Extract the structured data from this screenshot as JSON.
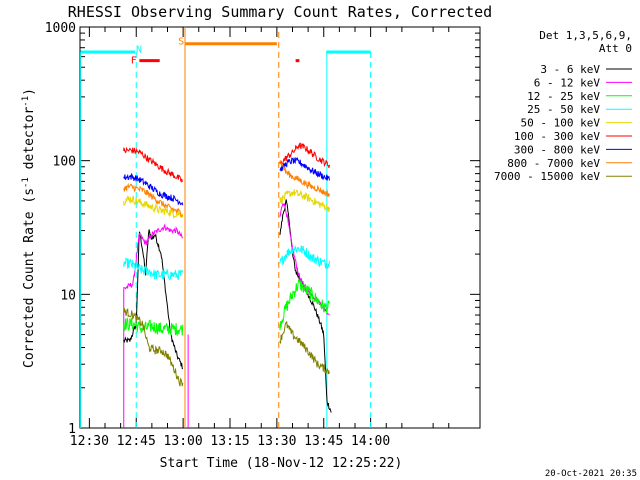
{
  "chart_data": {
    "type": "line",
    "title": "RHESSI Observing Summary Count Rates, Corrected",
    "xlabel": "Start Time (18-Nov-12 12:25:22)",
    "ylabel_main": "Corrected Count Rate (s",
    "ylabel_sup1": "-1",
    "ylabel_mid": " detector",
    "ylabel_sup2": "-1",
    "ylabel_end": ")",
    "yscale": "log",
    "ylim": [
      1,
      1000
    ],
    "xlim_min": [
      747,
      875
    ],
    "x_ticks": [
      {
        "t": 750,
        "label": "12:30"
      },
      {
        "t": 765,
        "label": "12:45"
      },
      {
        "t": 780,
        "label": "13:00"
      },
      {
        "t": 795,
        "label": "13:15"
      },
      {
        "t": 810,
        "label": "13:30"
      },
      {
        "t": 825,
        "label": "13:45"
      },
      {
        "t": 840,
        "label": "14:00"
      }
    ],
    "y_ticks": [
      {
        "v": 1,
        "label": "1"
      },
      {
        "v": 10,
        "label": "10"
      },
      {
        "v": 100,
        "label": "100"
      },
      {
        "v": 1000,
        "label": "1000"
      }
    ],
    "legend": {
      "placement": "right",
      "header": [
        "Det 1,3,5,6,9,",
        "Att 0"
      ],
      "entries": [
        {
          "name": "3 - 6 keV",
          "color": "#000000"
        },
        {
          "name": "6 - 12 keV",
          "color": "#ff00ff"
        },
        {
          "name": "12 - 25 keV",
          "color": "#00ff00"
        },
        {
          "name": "25 - 50 keV",
          "color": "#00ffff"
        },
        {
          "name": "50 - 100 keV",
          "color": "#e6d800"
        },
        {
          "name": "100 - 300 keV",
          "color": "#ff0000"
        },
        {
          "name": "300 - 800 keV",
          "color": "#0000ff"
        },
        {
          "name": "800 - 7000 keV",
          "color": "#ff8000"
        },
        {
          "name": "7000 - 15000 keV",
          "color": "#808000"
        }
      ]
    },
    "segments": [
      {
        "start": 761.0,
        "end": 781.6
      },
      {
        "start": 811.0,
        "end": 827.6
      }
    ],
    "series": [
      {
        "name": "3 - 6 keV",
        "color": "#000000",
        "noise": 0.02,
        "segs": [
          [
            [
              761.0,
              4.5
            ],
            [
              763,
              4.5
            ],
            [
              765,
              6
            ],
            [
              766,
              30
            ],
            [
              767,
              22
            ],
            [
              768,
              14
            ],
            [
              769,
              30
            ],
            [
              770,
              26
            ],
            [
              771,
              28
            ],
            [
              773,
              20
            ],
            [
              775,
              8
            ],
            [
              776,
              5
            ],
            [
              778,
              3.5
            ],
            [
              780,
              2.8
            ]
          ],
          [
            [
              811.0,
              28
            ],
            [
              812,
              40
            ],
            [
              813,
              50
            ],
            [
              814,
              35
            ],
            [
              815,
              20
            ],
            [
              816,
              15
            ],
            [
              818,
              12
            ],
            [
              820,
              10
            ],
            [
              822,
              8
            ],
            [
              824,
              6
            ],
            [
              825,
              5
            ],
            [
              826,
              1.6
            ],
            [
              827.5,
              1.3
            ]
          ]
        ]
      },
      {
        "name": "6 - 12 keV",
        "color": "#ff00ff",
        "noise": 0.02,
        "segs": [
          [
            [
              761.0,
              11
            ],
            [
              764,
              12
            ],
            [
              766,
              28
            ],
            [
              768,
              24
            ],
            [
              770,
              28
            ],
            [
              772,
              30
            ],
            [
              774,
              32
            ],
            [
              776,
              30
            ],
            [
              778,
              30
            ],
            [
              780,
              26
            ]
          ],
          [
            [
              811.0,
              38
            ],
            [
              812,
              50
            ],
            [
              813,
              42
            ],
            [
              814,
              30
            ],
            [
              815,
              22
            ],
            [
              817,
              14
            ],
            [
              819,
              11
            ],
            [
              821,
              10
            ],
            [
              823,
              9
            ],
            [
              825,
              8
            ],
            [
              827,
              7
            ]
          ]
        ]
      },
      {
        "name": "12 - 25 keV",
        "color": "#00ff00",
        "noise": 0.05,
        "segs": [
          [
            [
              761.0,
              6
            ],
            [
              764,
              6
            ],
            [
              767,
              5.5
            ],
            [
              770,
              5.8
            ],
            [
              773,
              5.5
            ],
            [
              776,
              5.5
            ],
            [
              778,
              5.5
            ],
            [
              780,
              5.5
            ]
          ],
          [
            [
              811.0,
              6
            ],
            [
              813,
              8
            ],
            [
              815,
              10
            ],
            [
              817,
              12
            ],
            [
              819,
              11
            ],
            [
              821,
              10
            ],
            [
              823,
              9
            ],
            [
              825,
              8
            ],
            [
              827,
              8
            ]
          ]
        ]
      },
      {
        "name": "25 - 50 keV",
        "color": "#00ffff",
        "noise": 0.04,
        "segs": [
          [
            [
              761.0,
              17
            ],
            [
              763,
              17
            ],
            [
              765,
              16
            ],
            [
              767,
              15
            ],
            [
              769,
              15
            ],
            [
              771,
              14
            ],
            [
              773,
              14
            ],
            [
              775,
              14
            ],
            [
              777,
              14
            ],
            [
              780,
              14
            ]
          ],
          [
            [
              811.0,
              17
            ],
            [
              813,
              20
            ],
            [
              815,
              22
            ],
            [
              817,
              22
            ],
            [
              819,
              21
            ],
            [
              821,
              19
            ],
            [
              823,
              18
            ],
            [
              825,
              17
            ],
            [
              827,
              17
            ]
          ]
        ]
      },
      {
        "name": "50 - 100 keV",
        "color": "#e6d800",
        "noise": 0.03,
        "segs": [
          [
            [
              761.0,
              50
            ],
            [
              763,
              52
            ],
            [
              765,
              50
            ],
            [
              767,
              48
            ],
            [
              769,
              46
            ],
            [
              771,
              44
            ],
            [
              773,
              42
            ],
            [
              775,
              42
            ],
            [
              777,
              40
            ],
            [
              780,
              40
            ]
          ],
          [
            [
              811.0,
              50
            ],
            [
              813,
              55
            ],
            [
              815,
              58
            ],
            [
              817,
              56
            ],
            [
              819,
              54
            ],
            [
              821,
              51
            ],
            [
              823,
              48
            ],
            [
              825,
              46
            ],
            [
              827,
              44
            ]
          ]
        ]
      },
      {
        "name": "100 - 300 keV",
        "color": "#ff0000",
        "noise": 0.025,
        "segs": [
          [
            [
              761.0,
              118
            ],
            [
              763,
              120
            ],
            [
              765,
              118
            ],
            [
              767,
              112
            ],
            [
              769,
              102
            ],
            [
              771,
              95
            ],
            [
              773,
              88
            ],
            [
              775,
              82
            ],
            [
              777,
              78
            ],
            [
              780,
              70
            ]
          ],
          [
            [
              811.0,
              95
            ],
            [
              813,
              105
            ],
            [
              815,
              115
            ],
            [
              817,
              130
            ],
            [
              819,
              125
            ],
            [
              821,
              115
            ],
            [
              823,
              105
            ],
            [
              825,
              98
            ],
            [
              827,
              92
            ]
          ]
        ]
      },
      {
        "name": "300 - 800 keV",
        "color": "#0000ff",
        "noise": 0.025,
        "segs": [
          [
            [
              761.0,
              75
            ],
            [
              763,
              76
            ],
            [
              765,
              74
            ],
            [
              767,
              70
            ],
            [
              769,
              65
            ],
            [
              771,
              60
            ],
            [
              773,
              56
            ],
            [
              775,
              54
            ],
            [
              777,
              52
            ],
            [
              780,
              48
            ]
          ],
          [
            [
              811.0,
              85
            ],
            [
              813,
              95
            ],
            [
              815,
              100
            ],
            [
              817,
              98
            ],
            [
              819,
              92
            ],
            [
              821,
              85
            ],
            [
              823,
              80
            ],
            [
              825,
              76
            ],
            [
              827,
              72
            ]
          ]
        ]
      },
      {
        "name": "800 - 7000 keV",
        "color": "#ff8000",
        "noise": 0.025,
        "segs": [
          [
            [
              761.0,
              62
            ],
            [
              763,
              64
            ],
            [
              765,
              62
            ],
            [
              767,
              60
            ],
            [
              769,
              56
            ],
            [
              771,
              52
            ],
            [
              773,
              48
            ],
            [
              775,
              45
            ],
            [
              777,
              43
            ],
            [
              780,
              40
            ]
          ],
          [
            [
              811.0,
              100
            ],
            [
              812,
              90
            ],
            [
              813,
              82
            ],
            [
              815,
              76
            ],
            [
              817,
              72
            ],
            [
              819,
              68
            ],
            [
              821,
              64
            ],
            [
              823,
              62
            ],
            [
              825,
              58
            ],
            [
              827,
              56
            ]
          ]
        ]
      },
      {
        "name": "7000 - 15000 keV",
        "color": "#808000",
        "noise": 0.03,
        "segs": [
          [
            [
              761.0,
              7.5
            ],
            [
              764,
              7
            ],
            [
              767,
              6
            ],
            [
              769,
              4
            ],
            [
              771,
              3.8
            ],
            [
              773,
              3.8
            ],
            [
              775,
              3.5
            ],
            [
              777,
              2.8
            ],
            [
              779,
              2.2
            ],
            [
              780,
              2.2
            ]
          ],
          [
            [
              811.0,
              4.5
            ],
            [
              813,
              6
            ],
            [
              815,
              5
            ],
            [
              817,
              4.5
            ],
            [
              819,
              4
            ],
            [
              821,
              3.5
            ],
            [
              823,
              3
            ],
            [
              825,
              2.8
            ],
            [
              827,
              2.6
            ]
          ]
        ]
      }
    ],
    "vlines": [
      {
        "t": 765.0,
        "color": "#00ffff",
        "dashed": true,
        "from": 1,
        "to": 650
      },
      {
        "t": 780.6,
        "color": "#ff8000",
        "dashed": false,
        "from": 1,
        "to": 1000
      },
      {
        "t": 810.6,
        "color": "#ff8000",
        "dashed": true,
        "from": 1,
        "to": 1000
      },
      {
        "t": 826.0,
        "color": "#00ffff",
        "dashed": false,
        "from": 1,
        "to": 650
      },
      {
        "t": 840.0,
        "color": "#00ffff",
        "dashed": true,
        "from": 1,
        "to": 650
      },
      {
        "t": 747.2,
        "color": "#00ffff",
        "dashed": false,
        "from": 1,
        "to": 650
      },
      {
        "t": 781.6,
        "color": "#ff00ff",
        "dashed": false,
        "from": 1,
        "to": 5
      },
      {
        "t": 761.0,
        "color": "#ff00ff",
        "dashed": false,
        "from": 1,
        "to": 11
      }
    ],
    "flag_bars": [
      {
        "start": 747.2,
        "end": 764.6,
        "y": 650,
        "color": "#00ffff"
      },
      {
        "start": 825.8,
        "end": 840.0,
        "y": 650,
        "color": "#00ffff"
      },
      {
        "start": 780.8,
        "end": 810.0,
        "y": 750,
        "color": "#ff8000"
      },
      {
        "start": 766.0,
        "end": 772.5,
        "y": 560,
        "color": "#ff0000"
      },
      {
        "start": 816.0,
        "end": 817.2,
        "y": 560,
        "color": "#ff0000"
      }
    ],
    "flag_labels": [
      {
        "text": "N",
        "t": 765.9,
        "y": 690,
        "color": "#00ffff"
      },
      {
        "text": "S",
        "t": 779.4,
        "y": 790,
        "color": "#ff8000"
      },
      {
        "text": "F",
        "t": 764.2,
        "y": 570,
        "color": "#ff0000"
      }
    ],
    "timestamp": "20-Oct-2021 20:35"
  }
}
